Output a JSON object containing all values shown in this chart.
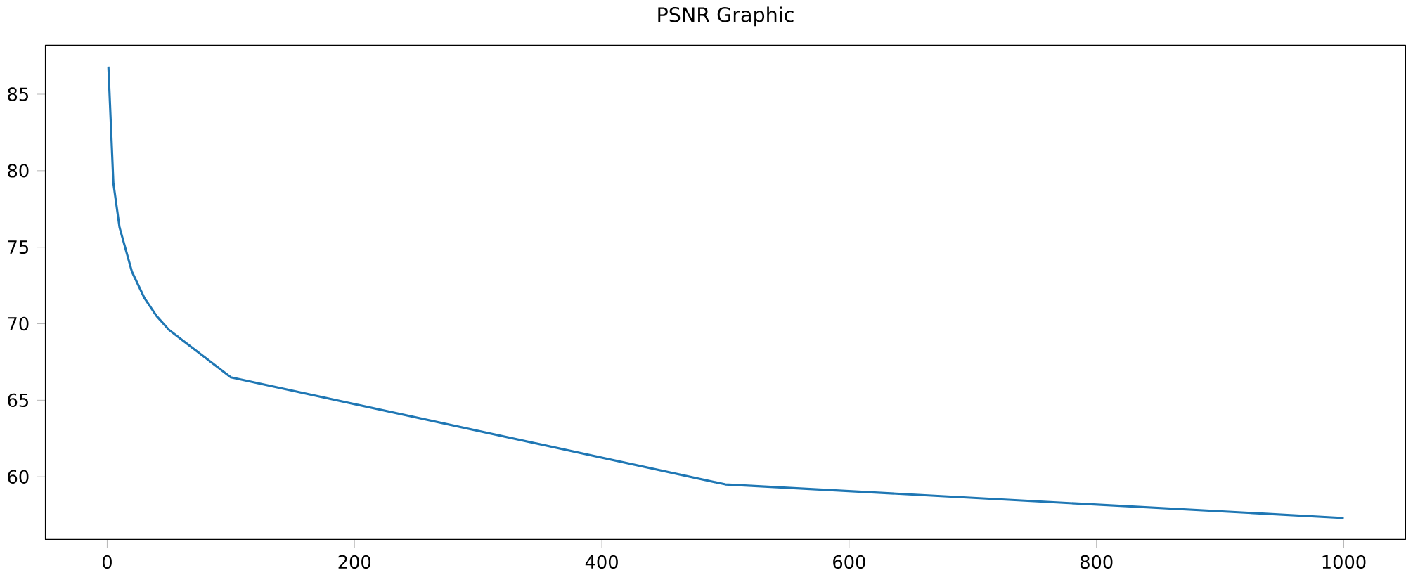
{
  "chart_data": {
    "type": "line",
    "title": "PSNR Graphic",
    "x": [
      1,
      5,
      10,
      20,
      30,
      40,
      50,
      100,
      500,
      1000
    ],
    "series": [
      {
        "color": "#1f77b4",
        "values": [
          86.8,
          79.2,
          76.3,
          73.4,
          71.7,
          70.5,
          69.6,
          66.5,
          59.5,
          57.3
        ]
      }
    ],
    "xlim": [
      -50,
      1050
    ],
    "ylim": [
      55.9,
      88.2
    ],
    "xticks": [
      0,
      200,
      400,
      600,
      800,
      1000
    ],
    "yticks": [
      60,
      65,
      70,
      75,
      80,
      85
    ],
    "grid": false
  }
}
